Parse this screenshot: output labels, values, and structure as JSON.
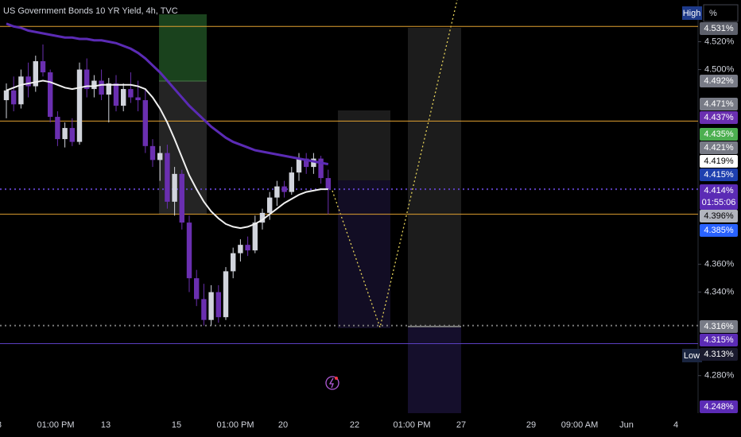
{
  "chart_data": {
    "type": "candlestick",
    "title": "US Government Bonds 10 YR Yield, 4h, TVC",
    "open": [
      4.478,
      4.485,
      4.475,
      4.495,
      4.488,
      4.506,
      4.498,
      4.466,
      4.45,
      4.458,
      4.448,
      4.5,
      4.486,
      4.492,
      4.482,
      4.49,
      4.474,
      4.486,
      4.48,
      4.478,
      4.445,
      4.435,
      4.44,
      4.405,
      4.425,
      4.39,
      4.35,
      4.335,
      4.32,
      4.34,
      4.322,
      4.355,
      4.368,
      4.374,
      4.37,
      4.39,
      4.397,
      4.408,
      4.416,
      4.412,
      4.426,
      4.436,
      4.43,
      4.436,
      4.422
    ],
    "high": [
      4.49,
      4.495,
      4.5,
      4.505,
      4.51,
      4.518,
      4.5,
      4.47,
      4.462,
      4.465,
      4.505,
      4.508,
      4.496,
      4.5,
      4.494,
      4.496,
      4.49,
      4.498,
      4.492,
      4.486,
      4.45,
      4.445,
      4.446,
      4.43,
      4.428,
      4.395,
      4.356,
      4.346,
      4.345,
      4.345,
      4.358,
      4.372,
      4.378,
      4.38,
      4.395,
      4.4,
      4.412,
      4.42,
      4.42,
      4.43,
      4.44,
      4.44,
      4.44,
      4.438,
      4.428
    ],
    "low": [
      4.465,
      4.47,
      4.472,
      4.48,
      4.484,
      4.495,
      4.462,
      4.445,
      4.444,
      4.445,
      4.446,
      4.48,
      4.48,
      4.478,
      4.462,
      4.47,
      4.47,
      4.476,
      4.47,
      4.44,
      4.43,
      4.42,
      4.4,
      4.395,
      4.385,
      4.34,
      4.33,
      4.316,
      4.316,
      4.318,
      4.32,
      4.35,
      4.362,
      4.366,
      4.368,
      4.385,
      4.392,
      4.402,
      4.408,
      4.41,
      4.42,
      4.425,
      4.425,
      4.418,
      4.396
    ],
    "close": [
      4.485,
      4.475,
      4.495,
      4.488,
      4.506,
      4.498,
      4.466,
      4.45,
      4.458,
      4.448,
      4.5,
      4.486,
      4.492,
      4.482,
      4.49,
      4.474,
      4.486,
      4.48,
      4.478,
      4.445,
      4.435,
      4.44,
      4.405,
      4.425,
      4.39,
      4.35,
      4.335,
      4.32,
      4.34,
      4.322,
      4.355,
      4.368,
      4.374,
      4.37,
      4.39,
      4.397,
      4.408,
      4.416,
      4.412,
      4.426,
      4.436,
      4.43,
      4.436,
      4.422,
      4.414
    ],
    "up_color": "#d1d4dc",
    "down_color": "#6a2fb0",
    "series": [
      {
        "color": "#5b2bb5",
        "values": [
          4.533,
          4.531,
          4.53,
          4.528,
          4.527,
          4.526,
          4.525,
          4.524,
          4.523,
          4.523,
          4.522,
          4.522,
          4.521,
          4.521,
          4.52,
          4.519,
          4.517,
          4.515,
          4.512,
          4.508,
          4.503,
          4.498,
          4.492,
          4.486,
          4.48,
          4.474,
          4.469,
          4.464,
          4.459,
          4.455,
          4.451,
          4.448,
          4.446,
          4.444,
          4.442,
          4.441,
          4.44,
          4.439,
          4.438,
          4.437,
          4.436,
          4.435,
          4.434,
          4.433,
          4.432
        ]
      },
      {
        "color": "#f0f0f0",
        "values": [
          4.485,
          4.487,
          4.489,
          4.49,
          4.491,
          4.492,
          4.491,
          4.489,
          4.487,
          4.486,
          4.487,
          4.488,
          4.488,
          4.489,
          4.489,
          4.489,
          4.489,
          4.489,
          4.488,
          4.486,
          4.48,
          4.472,
          4.462,
          4.45,
          4.437,
          4.424,
          4.414,
          4.405,
          4.398,
          4.393,
          4.389,
          4.387,
          4.386,
          4.387,
          4.389,
          4.392,
          4.396,
          4.4,
          4.404,
          4.407,
          4.41,
          4.412,
          4.413,
          4.414,
          4.414
        ]
      }
    ],
    "levels": [
      {
        "value": 4.531,
        "color": "#e0a030",
        "style": "solid"
      },
      {
        "value": 4.463,
        "color": "#e0a030",
        "style": "solid"
      },
      {
        "value": 4.396,
        "color": "#e0a030",
        "style": "solid"
      },
      {
        "value": 4.414,
        "color": "#5b3fc0",
        "style": "dotted"
      },
      {
        "value": 4.316,
        "color": "#777777",
        "style": "dotted"
      },
      {
        "value": 4.303,
        "color": "#5b3fc0",
        "style": "solid"
      }
    ],
    "ylim": [
      4.253,
      4.55
    ],
    "yticks": [
      {
        "value": 4.52,
        "label": "4.520%"
      },
      {
        "value": 4.5,
        "label": "4.500%"
      },
      {
        "value": 4.36,
        "label": "4.360%"
      },
      {
        "value": 4.34,
        "label": "4.340%"
      },
      {
        "value": 4.28,
        "label": "4.280%"
      }
    ],
    "x_labels": [
      "8",
      "01:00 PM",
      "13",
      "15",
      "01:00 PM",
      "20",
      "22",
      "01:00 PM",
      "27",
      "29",
      "09:00 AM",
      "Jun",
      "4"
    ],
    "price_tags": [
      {
        "label": "4.531%",
        "bg": "#5d606b",
        "fg": "#ffffff"
      },
      {
        "label": "4.492%",
        "bg": "#787b86",
        "fg": "#ffffff"
      },
      {
        "label": "4.471%",
        "bg": "#787b86",
        "fg": "#ffffff"
      },
      {
        "label": "4.437%",
        "bg": "#6a2fb0",
        "fg": "#ffffff"
      },
      {
        "label": "4.435%",
        "bg": "#4caf50",
        "fg": "#ffffff"
      },
      {
        "label": "4.421%",
        "bg": "#787b86",
        "fg": "#ffffff"
      },
      {
        "label": "4.419%",
        "bg": "#ffffff",
        "fg": "#000000"
      },
      {
        "label": "4.415%",
        "bg": "#1e40af",
        "fg": "#ffffff"
      },
      {
        "label": "4.414%",
        "sub": "01:55:06",
        "bg": "#5b2bb5",
        "fg": "#ffffff"
      },
      {
        "label": "4.396%",
        "bg": "#b2b5be",
        "fg": "#000000"
      },
      {
        "label": "4.385%",
        "bg": "#2962ff",
        "fg": "#ffffff"
      },
      {
        "label": "4.316%",
        "bg": "#787b86",
        "fg": "#ffffff"
      },
      {
        "label": "4.315%",
        "bg": "#5b2bb5",
        "fg": "#ffffff"
      },
      {
        "label": "4.313%",
        "bg": "#1a1a2e",
        "fg": "#ffffff"
      },
      {
        "label": "4.248%",
        "bg": "#5b2bb5",
        "fg": "#ffffff"
      }
    ],
    "high_label": "High",
    "unit_label": "%",
    "low_label": "Low"
  }
}
